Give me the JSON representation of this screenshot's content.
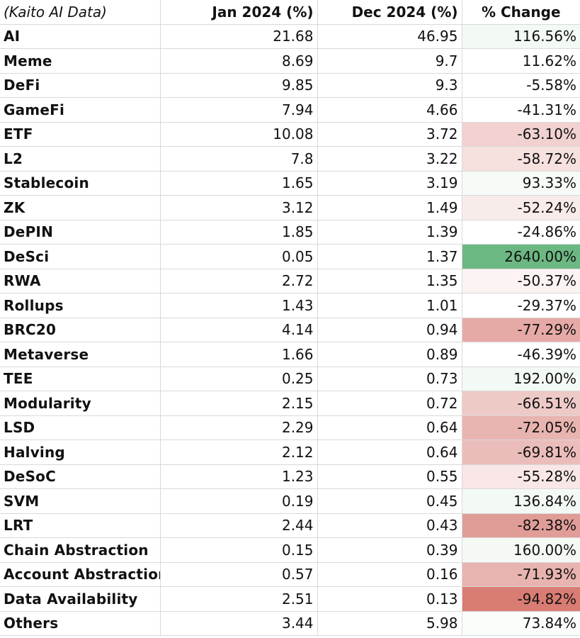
{
  "table": {
    "headers": {
      "label": "(Kaito AI Data)",
      "jan": "Jan 2024 (%)",
      "dec": "Dec 2024 (%)",
      "change": "% Change"
    },
    "rows": [
      {
        "name": "AI",
        "jan": "21.68",
        "dec": "46.95",
        "change": "116.56%",
        "color": "#f3f9f4"
      },
      {
        "name": "Meme",
        "jan": "8.69",
        "dec": "9.7",
        "change": "11.62%",
        "color": "#ffffff"
      },
      {
        "name": "DeFi",
        "jan": "9.85",
        "dec": "9.3",
        "change": "-5.58%",
        "color": "#ffffff"
      },
      {
        "name": "GameFi",
        "jan": "7.94",
        "dec": "4.66",
        "change": "-41.31%",
        "color": "#ffffff"
      },
      {
        "name": "ETF",
        "jan": "10.08",
        "dec": "3.72",
        "change": "-63.10%",
        "color": "#f1d2d0"
      },
      {
        "name": "L2",
        "jan": "7.8",
        "dec": "3.22",
        "change": "-58.72%",
        "color": "#f6e1df"
      },
      {
        "name": "Stablecoin",
        "jan": "1.65",
        "dec": "3.19",
        "change": "93.33%",
        "color": "#f7fbf7"
      },
      {
        "name": "ZK",
        "jan": "3.12",
        "dec": "1.49",
        "change": "-52.24%",
        "color": "#f8ecea"
      },
      {
        "name": "DePIN",
        "jan": "1.85",
        "dec": "1.39",
        "change": "-24.86%",
        "color": "#ffffff"
      },
      {
        "name": "DeSci",
        "jan": "0.05",
        "dec": "1.37",
        "change": "2640.00%",
        "color": "#6cb882"
      },
      {
        "name": "RWA",
        "jan": "2.72",
        "dec": "1.35",
        "change": "-50.37%",
        "color": "#fbf4f3"
      },
      {
        "name": "Rollups",
        "jan": "1.43",
        "dec": "1.01",
        "change": "-29.37%",
        "color": "#ffffff"
      },
      {
        "name": "BRC20",
        "jan": "4.14",
        "dec": "0.94",
        "change": "-77.29%",
        "color": "#e6aaa6"
      },
      {
        "name": "Metaverse",
        "jan": "1.66",
        "dec": "0.89",
        "change": "-46.39%",
        "color": "#ffffff"
      },
      {
        "name": "TEE",
        "jan": "0.25",
        "dec": "0.73",
        "change": "192.00%",
        "color": "#f3f9f4"
      },
      {
        "name": "Modularity",
        "jan": "2.15",
        "dec": "0.72",
        "change": "-66.51%",
        "color": "#eecac7"
      },
      {
        "name": "LSD",
        "jan": "2.29",
        "dec": "0.64",
        "change": "-72.05%",
        "color": "#e8b4b0"
      },
      {
        "name": "Halving",
        "jan": "2.12",
        "dec": "0.64",
        "change": "-69.81%",
        "color": "#ebbdba"
      },
      {
        "name": "DeSoC",
        "jan": "1.23",
        "dec": "0.55",
        "change": "-55.28%",
        "color": "#f8e7e6"
      },
      {
        "name": "SVM",
        "jan": "0.19",
        "dec": "0.45",
        "change": "136.84%",
        "color": "#f3f9f4"
      },
      {
        "name": "LRT",
        "jan": "2.44",
        "dec": "0.43",
        "change": "-82.38%",
        "color": "#e09d98"
      },
      {
        "name": "Chain Abstraction",
        "jan": "0.15",
        "dec": "0.39",
        "change": "160.00%",
        "color": "#f4f9f4"
      },
      {
        "name": "Account Abstraction",
        "jan": "0.57",
        "dec": "0.16",
        "change": "-71.93%",
        "color": "#e8b4b0"
      },
      {
        "name": "Data Availability",
        "jan": "2.51",
        "dec": "0.13",
        "change": "-94.82%",
        "color": "#d97c73"
      },
      {
        "name": "Others",
        "jan": "3.44",
        "dec": "5.98",
        "change": "73.84%",
        "color": "#fbfdfb"
      }
    ]
  }
}
